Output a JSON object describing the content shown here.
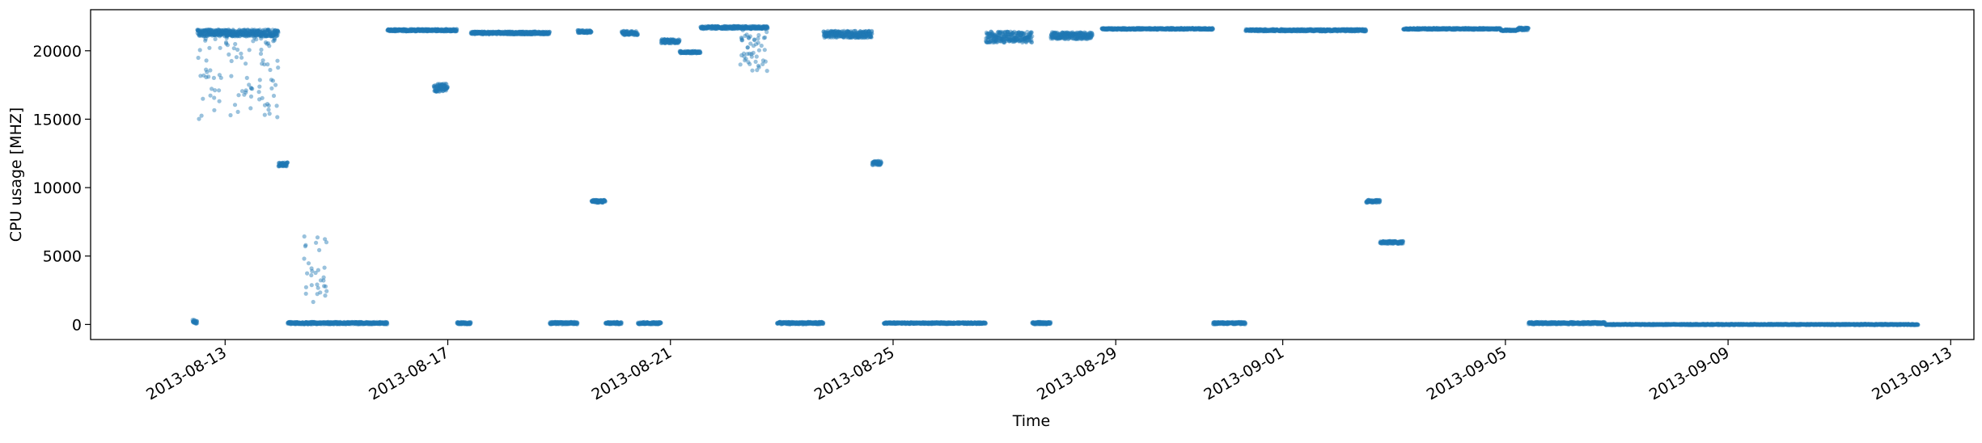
{
  "chart_data": {
    "type": "scatter",
    "title": "",
    "xlabel": "Time",
    "ylabel": "CPU usage [MHZ]",
    "xlim": [
      "2013-08-10T14:00",
      "2013-09-13T10:00"
    ],
    "ylim": [
      -1100,
      23000
    ],
    "grid": false,
    "legend": "none",
    "color": "#1f77b4",
    "x_ticks": [
      "2013-08-13",
      "2013-08-17",
      "2013-08-21",
      "2013-08-25",
      "2013-08-29",
      "2013-09-01",
      "2013-09-05",
      "2013-09-09",
      "2013-09-13"
    ],
    "y_ticks": [
      0,
      5000,
      10000,
      15000,
      20000
    ],
    "y_tick_labels": [
      "0",
      "5000",
      "10000",
      "15000",
      "20000"
    ],
    "sampling_interval_minutes": 5,
    "series": [
      {
        "segments": [
          {
            "start": "2013-08-12T10:00",
            "end": "2013-08-12T12:00",
            "value": 200,
            "spread": 150
          },
          {
            "start": "2013-08-12T12:00",
            "end": "2013-08-13T23:00",
            "value": 21300,
            "spread": 250
          },
          {
            "start": "2013-08-12T12:00",
            "end": "2013-08-13T23:00",
            "value": 18000,
            "spread": 3000,
            "density": 0.25
          },
          {
            "start": "2013-08-13T23:00",
            "end": "2013-08-14T03:00",
            "value": 11700,
            "spread": 150
          },
          {
            "start": "2013-08-14T03:00",
            "end": "2013-08-15T22:00",
            "value": 100,
            "spread": 80
          },
          {
            "start": "2013-08-14T10:00",
            "end": "2013-08-14T20:00",
            "value": 4000,
            "spread": 2500,
            "density": 0.25
          },
          {
            "start": "2013-08-15T22:00",
            "end": "2013-08-17T04:00",
            "value": 21500,
            "spread": 80
          },
          {
            "start": "2013-08-16T18:00",
            "end": "2013-08-17T00:00",
            "value": 17300,
            "spread": 300
          },
          {
            "start": "2013-08-17T04:00",
            "end": "2013-08-17T10:00",
            "value": 100,
            "spread": 80
          },
          {
            "start": "2013-08-17T10:00",
            "end": "2013-08-18T20:00",
            "value": 21300,
            "spread": 100
          },
          {
            "start": "2013-08-18T20:00",
            "end": "2013-08-19T08:00",
            "value": 100,
            "spread": 80
          },
          {
            "start": "2013-08-19T08:00",
            "end": "2013-08-19T14:00",
            "value": 21400,
            "spread": 100
          },
          {
            "start": "2013-08-19T14:00",
            "end": "2013-08-19T20:00",
            "value": 9000,
            "spread": 100
          },
          {
            "start": "2013-08-19T20:00",
            "end": "2013-08-20T03:00",
            "value": 100,
            "spread": 80
          },
          {
            "start": "2013-08-20T03:00",
            "end": "2013-08-20T10:00",
            "value": 21300,
            "spread": 150
          },
          {
            "start": "2013-08-20T10:00",
            "end": "2013-08-20T20:00",
            "value": 100,
            "spread": 80
          },
          {
            "start": "2013-08-20T20:00",
            "end": "2013-08-21T04:00",
            "value": 20700,
            "spread": 150
          },
          {
            "start": "2013-08-21T04:00",
            "end": "2013-08-21T13:00",
            "value": 19900,
            "spread": 80
          },
          {
            "start": "2013-08-21T13:00",
            "end": "2013-08-22T18:00",
            "value": 21700,
            "spread": 100
          },
          {
            "start": "2013-08-22T06:00",
            "end": "2013-08-22T18:00",
            "value": 20000,
            "spread": 1500,
            "density": 0.4
          },
          {
            "start": "2013-08-22T22:00",
            "end": "2013-08-23T18:00",
            "value": 100,
            "spread": 80
          },
          {
            "start": "2013-08-23T18:00",
            "end": "2013-08-24T15:00",
            "value": 21200,
            "spread": 250
          },
          {
            "start": "2013-08-24T15:00",
            "end": "2013-08-24T19:00",
            "value": 11800,
            "spread": 150
          },
          {
            "start": "2013-08-24T20:00",
            "end": "2013-08-26T16:00",
            "value": 100,
            "spread": 60
          },
          {
            "start": "2013-08-26T16:00",
            "end": "2013-08-27T12:00",
            "value": 21000,
            "spread": 400
          },
          {
            "start": "2013-08-27T12:00",
            "end": "2013-08-27T20:00",
            "value": 100,
            "spread": 80
          },
          {
            "start": "2013-08-27T20:00",
            "end": "2013-08-28T14:00",
            "value": 21100,
            "spread": 250
          },
          {
            "start": "2013-08-28T18:00",
            "end": "2013-08-30T18:00",
            "value": 21600,
            "spread": 60
          },
          {
            "start": "2013-08-30T18:00",
            "end": "2013-08-31T08:00",
            "value": 100,
            "spread": 80
          },
          {
            "start": "2013-08-31T08:00",
            "end": "2013-09-02T12:00",
            "value": 21500,
            "spread": 80
          },
          {
            "start": "2013-09-02T12:00",
            "end": "2013-09-02T18:00",
            "value": 9000,
            "spread": 100
          },
          {
            "start": "2013-09-02T18:00",
            "end": "2013-09-03T04:00",
            "value": 6000,
            "spread": 100
          },
          {
            "start": "2013-09-03T04:00",
            "end": "2013-09-04T22:00",
            "value": 21600,
            "spread": 60
          },
          {
            "start": "2013-09-04T22:00",
            "end": "2013-09-05T05:00",
            "value": 21500,
            "spread": 60
          },
          {
            "start": "2013-09-05T05:00",
            "end": "2013-09-05T10:00",
            "value": 21600,
            "spread": 100
          },
          {
            "start": "2013-09-05T10:00",
            "end": "2013-09-06T19:00",
            "value": 100,
            "spread": 80
          },
          {
            "start": "2013-09-06T19:00",
            "end": "2013-09-12T10:00",
            "value": 0,
            "spread": 40
          }
        ]
      }
    ]
  }
}
